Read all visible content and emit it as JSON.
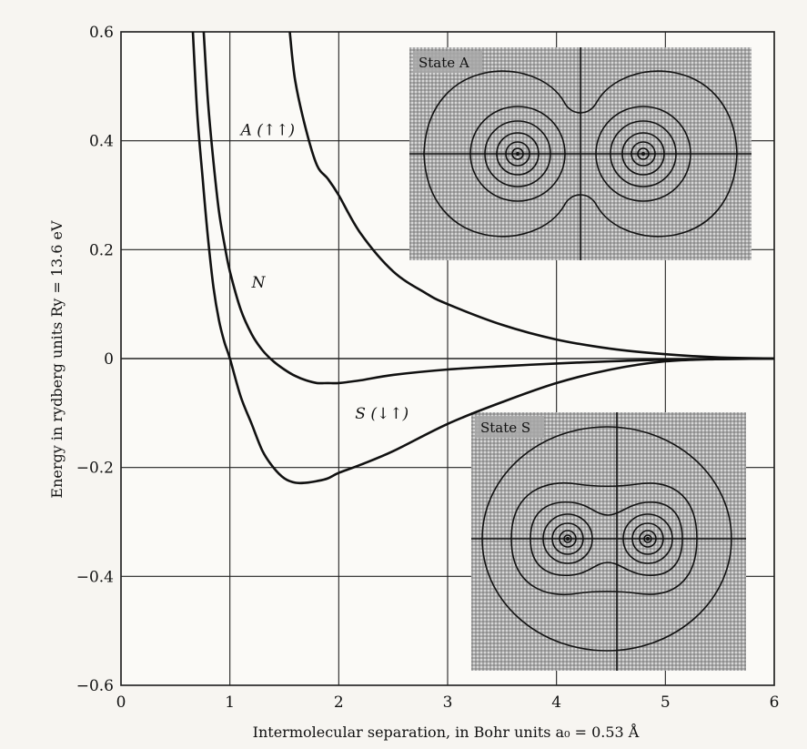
{
  "chart_data": {
    "type": "line",
    "title": "",
    "xlabel": "Intermolecular separation, in Bohr units a₀ = 0.53 Å",
    "ylabel": "Energy in rydberg units Ry = 13.6 eV",
    "xlim": [
      0,
      6
    ],
    "ylim": [
      -0.6,
      0.6
    ],
    "grid": true,
    "x_ticks": [
      0,
      1,
      2,
      3,
      4,
      5,
      6
    ],
    "x_tick_labels": [
      "0",
      "1",
      "2",
      "3",
      "4",
      "5",
      "6"
    ],
    "y_ticks": [
      -0.6,
      -0.4,
      -0.2,
      0,
      0.2,
      0.4,
      0.6
    ],
    "y_tick_labels": [
      "−0.6",
      "−0.4",
      "−0.2",
      "0",
      "0.2",
      "0.4",
      "0.6"
    ],
    "series": [
      {
        "name": "A (↑↑)",
        "x": [
          1.55,
          1.6,
          1.7,
          1.8,
          1.9,
          2.0,
          2.2,
          2.5,
          2.8,
          3.0,
          3.5,
          4.0,
          4.5,
          5.0,
          5.5,
          6.0
        ],
        "y": [
          0.6,
          0.51,
          0.42,
          0.355,
          0.33,
          0.3,
          0.23,
          0.16,
          0.12,
          0.1,
          0.062,
          0.035,
          0.018,
          0.008,
          0.002,
          0.0
        ]
      },
      {
        "name": "N",
        "x": [
          0.76,
          0.8,
          0.85,
          0.9,
          0.95,
          1.0,
          1.1,
          1.2,
          1.3,
          1.4,
          1.5,
          1.6,
          1.7,
          1.8,
          1.9,
          2.0,
          2.2,
          2.5,
          3.0,
          3.5,
          4.0,
          4.5,
          5.0,
          5.5,
          6.0
        ],
        "y": [
          0.6,
          0.47,
          0.36,
          0.27,
          0.21,
          0.16,
          0.09,
          0.045,
          0.015,
          -0.005,
          -0.02,
          -0.032,
          -0.04,
          -0.045,
          -0.045,
          -0.045,
          -0.04,
          -0.03,
          -0.02,
          -0.014,
          -0.009,
          -0.005,
          -0.002,
          -0.001,
          0.0
        ]
      },
      {
        "name": "S (↓↑)",
        "x": [
          0.66,
          0.7,
          0.75,
          0.8,
          0.85,
          0.9,
          0.95,
          1.0,
          1.1,
          1.2,
          1.3,
          1.4,
          1.5,
          1.6,
          1.7,
          1.8,
          1.9,
          2.0,
          2.2,
          2.5,
          3.0,
          3.5,
          4.0,
          4.5,
          5.0,
          5.5,
          6.0
        ],
        "y": [
          0.6,
          0.45,
          0.33,
          0.22,
          0.13,
          0.07,
          0.03,
          0.0,
          -0.07,
          -0.12,
          -0.17,
          -0.2,
          -0.22,
          -0.228,
          -0.228,
          -0.225,
          -0.22,
          -0.21,
          -0.195,
          -0.17,
          -0.12,
          -0.08,
          -0.045,
          -0.02,
          -0.005,
          -0.001,
          0.0
        ]
      }
    ],
    "annotations": [
      {
        "text": "A (↑↑)",
        "x": 1.1,
        "y": 0.41
      },
      {
        "text": "N",
        "x": 1.2,
        "y": 0.13
      },
      {
        "text": "S (↓↑)",
        "x": 2.15,
        "y": -0.11
      }
    ],
    "insets": [
      {
        "title": "State A"
      },
      {
        "title": "State S"
      }
    ]
  }
}
